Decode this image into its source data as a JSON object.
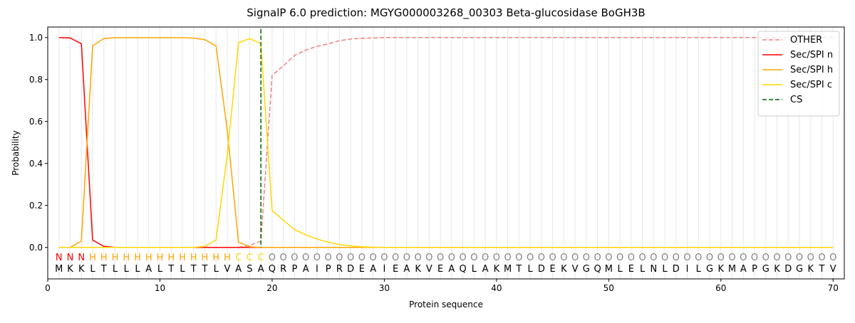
{
  "chart_data": {
    "type": "line",
    "title": "SignalP 6.0 prediction: MGYG000003268_00303 Beta-glucosidase BoGH3B",
    "xlabel": "Protein sequence",
    "ylabel": "Probability",
    "xlim": [
      0,
      71
    ],
    "ylim": [
      -0.15,
      1.05
    ],
    "xticks": [
      0,
      10,
      20,
      30,
      40,
      50,
      60,
      70
    ],
    "yticks": [
      {
        "value": 0,
        "label": "0.0"
      },
      {
        "value": 0.2,
        "label": "0.2"
      },
      {
        "value": 0.4,
        "label": "0.4"
      },
      {
        "value": 0.6,
        "label": "0.6"
      },
      {
        "value": 0.8,
        "label": "0.8"
      },
      {
        "value": 1.0,
        "label": "1.0"
      }
    ],
    "vgrid": true,
    "legend": "upper right",
    "x": [
      1,
      2,
      3,
      4,
      5,
      6,
      7,
      8,
      9,
      10,
      11,
      12,
      13,
      14,
      15,
      16,
      17,
      18,
      19,
      20,
      21,
      22,
      23,
      24,
      25,
      26,
      27,
      28,
      29,
      30,
      31,
      32,
      33,
      34,
      35,
      36,
      37,
      38,
      39,
      40,
      41,
      42,
      43,
      44,
      45,
      46,
      47,
      48,
      49,
      50,
      51,
      52,
      53,
      54,
      55,
      56,
      57,
      58,
      59,
      60,
      61,
      62,
      63,
      64,
      65,
      66,
      67,
      68,
      69,
      70
    ],
    "sequence": [
      "M",
      "K",
      "K",
      "L",
      "T",
      "L",
      "L",
      "L",
      "A",
      "L",
      "T",
      "L",
      "T",
      "T",
      "L",
      "V",
      "A",
      "S",
      "A",
      "Q",
      "R",
      "P",
      "A",
      "I",
      "P",
      "R",
      "D",
      "E",
      "A",
      "I",
      "E",
      "A",
      "K",
      "V",
      "E",
      "A",
      "Q",
      "L",
      "A",
      "K",
      "M",
      "T",
      "L",
      "D",
      "E",
      "K",
      "V",
      "G",
      "Q",
      "M",
      "L",
      "E",
      "L",
      "N",
      "L",
      "D",
      "I",
      "L",
      "G",
      "K",
      "M",
      "A",
      "P",
      "G",
      "K",
      "D",
      "G",
      "K",
      "T",
      "V"
    ],
    "regions": [
      "N",
      "N",
      "N",
      "H",
      "H",
      "H",
      "H",
      "H",
      "H",
      "H",
      "H",
      "H",
      "H",
      "H",
      "H",
      "H",
      "C",
      "C",
      "C",
      "O",
      "O",
      "O",
      "O",
      "O",
      "O",
      "O",
      "O",
      "O",
      "O",
      "O",
      "O",
      "O",
      "O",
      "O",
      "O",
      "O",
      "O",
      "O",
      "O",
      "O",
      "O",
      "O",
      "O",
      "O",
      "O",
      "O",
      "O",
      "O",
      "O",
      "O",
      "O",
      "O",
      "O",
      "O",
      "O",
      "O",
      "O",
      "O",
      "O",
      "O",
      "O",
      "O",
      "O",
      "O",
      "O",
      "O",
      "O",
      "O",
      "O",
      "O"
    ],
    "region_colors": {
      "N": "#ff0000",
      "H": "#ffa500",
      "C": "#ffd700",
      "O": "#808080"
    },
    "series": [
      {
        "name": "OTHER",
        "color": "#f08080",
        "dashed": true,
        "values": [
          0,
          0,
          0,
          0,
          0,
          0,
          0,
          0,
          0,
          0,
          0,
          0,
          0,
          0,
          0,
          0,
          0,
          0.01,
          0.03,
          0.82,
          0.865,
          0.915,
          0.94,
          0.958,
          0.97,
          0.985,
          0.993,
          0.996,
          0.998,
          1.0,
          1,
          1,
          1,
          1,
          1,
          1,
          1,
          1,
          1,
          1,
          1,
          1,
          1,
          1,
          1,
          1,
          1,
          1,
          1,
          1,
          1,
          1,
          1,
          1,
          1,
          1,
          1,
          1,
          1,
          1,
          1,
          1,
          1,
          1,
          1,
          1,
          1,
          1,
          1,
          1
        ]
      },
      {
        "name": "Sec/SPI n",
        "color": "#ff0000",
        "dashed": false,
        "values": [
          1.0,
          0.998,
          0.97,
          0.035,
          0.005,
          0,
          0,
          0,
          0,
          0,
          0,
          0,
          0,
          0,
          0,
          0,
          0,
          0,
          0,
          0,
          0,
          0,
          0,
          0,
          0,
          0,
          0,
          0,
          0,
          0,
          0,
          0,
          0,
          0,
          0,
          0,
          0,
          0,
          0,
          0,
          0,
          0,
          0,
          0,
          0,
          0,
          0,
          0,
          0,
          0,
          0,
          0,
          0,
          0,
          0,
          0,
          0,
          0,
          0,
          0,
          0,
          0,
          0,
          0,
          0,
          0,
          0,
          0,
          0,
          0
        ]
      },
      {
        "name": "Sec/SPI h",
        "color": "#ffa500",
        "dashed": false,
        "values": [
          0,
          0,
          0.03,
          0.96,
          0.995,
          0.999,
          0.999,
          0.999,
          0.999,
          0.999,
          0.999,
          0.999,
          0.997,
          0.99,
          0.96,
          0.56,
          0.025,
          0.003,
          0,
          0,
          0,
          0,
          0,
          0,
          0,
          0,
          0,
          0,
          0,
          0,
          0,
          0,
          0,
          0,
          0,
          0,
          0,
          0,
          0,
          0,
          0,
          0,
          0,
          0,
          0,
          0,
          0,
          0,
          0,
          0,
          0,
          0,
          0,
          0,
          0,
          0,
          0,
          0,
          0,
          0,
          0,
          0,
          0,
          0,
          0,
          0,
          0,
          0,
          0,
          0
        ]
      },
      {
        "name": "Sec/SPI c",
        "color": "#ffd700",
        "dashed": false,
        "values": [
          0,
          0,
          0,
          0,
          0,
          0,
          0,
          0,
          0,
          0,
          0,
          0,
          0,
          0.005,
          0.035,
          0.44,
          0.975,
          0.995,
          0.97,
          0.175,
          0.13,
          0.085,
          0.06,
          0.04,
          0.025,
          0.013,
          0.007,
          0.003,
          0.001,
          0,
          0,
          0,
          0,
          0,
          0,
          0,
          0,
          0,
          0,
          0,
          0,
          0,
          0,
          0,
          0,
          0,
          0,
          0,
          0,
          0,
          0,
          0,
          0,
          0,
          0,
          0,
          0,
          0,
          0,
          0,
          0,
          0,
          0,
          0,
          0,
          0,
          0,
          0,
          0,
          0
        ]
      }
    ],
    "cs": {
      "name": "CS",
      "color": "#006400",
      "x": 19
    }
  }
}
